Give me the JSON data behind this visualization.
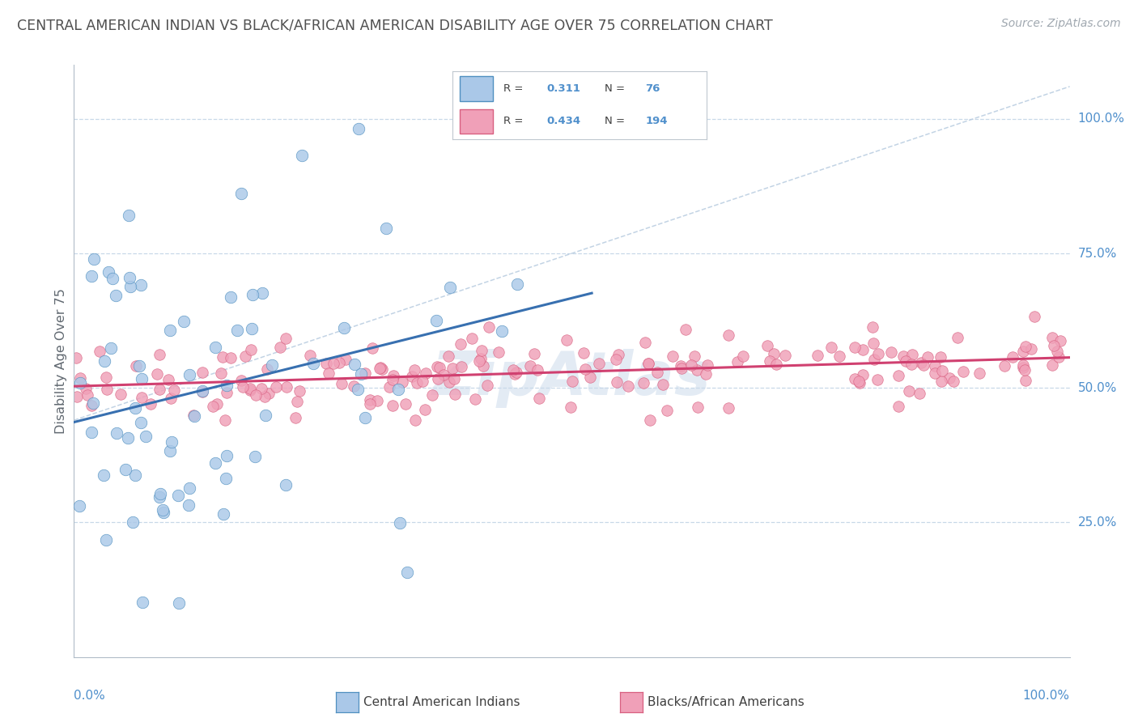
{
  "title": "CENTRAL AMERICAN INDIAN VS BLACK/AFRICAN AMERICAN DISABILITY AGE OVER 75 CORRELATION CHART",
  "source": "Source: ZipAtlas.com",
  "ylabel": "Disability Age Over 75",
  "legend_blue_R": "0.311",
  "legend_blue_N": "76",
  "legend_pink_R": "0.434",
  "legend_pink_N": "194",
  "legend_blue_label": "Central American Indians",
  "legend_pink_label": "Blacks/African Americans",
  "blue_fill": "#aac8e8",
  "blue_edge": "#5090c0",
  "pink_fill": "#f0a0b8",
  "pink_edge": "#d86080",
  "blue_line": "#3870b0",
  "pink_line": "#d04070",
  "diagonal_color": "#b8cce0",
  "watermark_color": "#c8d8ea",
  "grid_color": "#c8d8e8",
  "title_color": "#505050",
  "source_color": "#a0a8b0",
  "axis_label_color": "#5090cc",
  "background_color": "#ffffff",
  "seed": 99,
  "right_ytick_labels": [
    "100.0%",
    "75.0%",
    "50.0%",
    "25.0%"
  ],
  "right_ytick_vals": [
    1.0,
    0.75,
    0.5,
    0.25
  ]
}
